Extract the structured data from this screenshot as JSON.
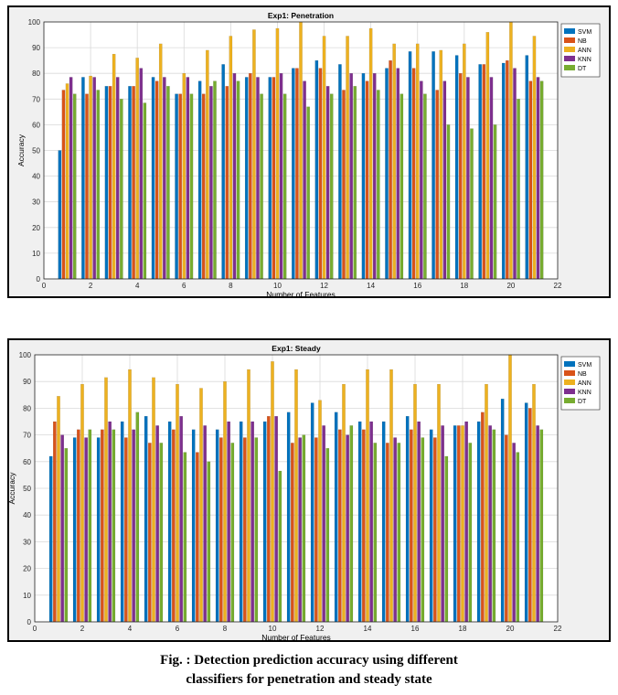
{
  "caption": {
    "line1": "Fig.    : Detection prediction accuracy using different",
    "line2": "classifiers for penetration and steady state"
  },
  "colors": {
    "SVM": "#0072bd",
    "NB": "#d95319",
    "ANN": "#edb120",
    "KNN": "#7e2f8e",
    "DT": "#77ac30"
  },
  "chart_data": [
    {
      "type": "bar",
      "title": "Exp1: Penetration",
      "xlabel": "Number of Features",
      "ylabel": "Accuracy",
      "xlim": [
        0,
        22
      ],
      "ylim": [
        0,
        100
      ],
      "xticks": [
        0,
        2,
        4,
        6,
        8,
        10,
        12,
        14,
        16,
        18,
        20,
        22
      ],
      "yticks": [
        0,
        10,
        20,
        30,
        40,
        50,
        60,
        70,
        80,
        90,
        100
      ],
      "grid": true,
      "legend_position": "top-right",
      "categories": [
        1,
        2,
        3,
        4,
        5,
        6,
        7,
        8,
        9,
        10,
        11,
        12,
        13,
        14,
        15,
        16,
        17,
        18,
        19,
        20,
        21
      ],
      "series": [
        {
          "name": "SVM",
          "values": [
            50,
            78.5,
            75,
            75,
            78.5,
            72,
            77,
            83.5,
            78.5,
            78.5,
            82,
            85,
            83.5,
            80,
            82,
            88.5,
            88.5,
            87,
            83.5,
            84,
            87
          ]
        },
        {
          "name": "NB",
          "values": [
            73.5,
            72,
            75,
            75,
            77,
            72,
            72,
            75,
            80,
            78.5,
            82,
            82,
            73.5,
            77,
            85,
            82,
            73.5,
            80,
            83.5,
            85,
            77
          ]
        },
        {
          "name": "ANN",
          "values": [
            76,
            79,
            87.5,
            86,
            91.5,
            80,
            89,
            94.5,
            97,
            97.5,
            100,
            94.5,
            94.5,
            97.5,
            91.5,
            91.5,
            89,
            91.5,
            96,
            100,
            94.5
          ]
        },
        {
          "name": "KNN",
          "values": [
            78.5,
            78.5,
            78.5,
            82,
            78.5,
            78.5,
            75,
            80,
            78.5,
            80,
            77,
            75,
            80,
            80,
            82,
            77,
            77,
            78.5,
            78.5,
            82,
            78.5
          ]
        },
        {
          "name": "DT",
          "values": [
            72,
            73.5,
            70,
            68.5,
            75,
            72,
            77,
            77,
            72,
            72,
            67,
            72,
            75,
            73.5,
            72,
            72,
            60,
            58.5,
            60,
            70,
            77
          ]
        }
      ]
    },
    {
      "type": "bar",
      "title": "Exp1: Steady",
      "xlabel": "Number of Features",
      "ylabel": "Accuracy",
      "xlim": [
        0,
        22
      ],
      "ylim": [
        0,
        100
      ],
      "xticks": [
        0,
        2,
        4,
        6,
        8,
        10,
        12,
        14,
        16,
        18,
        20,
        22
      ],
      "yticks": [
        0,
        10,
        20,
        30,
        40,
        50,
        60,
        70,
        80,
        90,
        100
      ],
      "grid": true,
      "legend_position": "top-right",
      "categories": [
        1,
        2,
        3,
        4,
        5,
        6,
        7,
        8,
        9,
        10,
        11,
        12,
        13,
        14,
        15,
        16,
        17,
        18,
        19,
        20,
        21
      ],
      "series": [
        {
          "name": "SVM",
          "values": [
            62,
            69,
            69,
            75,
            77,
            75,
            72,
            72,
            75,
            75,
            78.5,
            82,
            78.5,
            75,
            75,
            77,
            72,
            73.5,
            75,
            83.5,
            82
          ]
        },
        {
          "name": "NB",
          "values": [
            75,
            72,
            72,
            69,
            67,
            72,
            63.5,
            69,
            69,
            77,
            67,
            69,
            72,
            72,
            67,
            72,
            69,
            73.5,
            78.5,
            70,
            80
          ]
        },
        {
          "name": "ANN",
          "values": [
            84.5,
            89,
            91.5,
            94.5,
            91.5,
            89,
            87.5,
            90,
            94.5,
            97.5,
            94.5,
            83,
            89,
            94.5,
            94.5,
            89,
            89,
            73.5,
            89,
            100,
            89
          ]
        },
        {
          "name": "KNN",
          "values": [
            70,
            69,
            75,
            72,
            73.5,
            77,
            73.5,
            75,
            75,
            77,
            69,
            73.5,
            70,
            75,
            69,
            75,
            73.5,
            75,
            73.5,
            67,
            73.5
          ]
        },
        {
          "name": "DT",
          "values": [
            65,
            72,
            72,
            78.5,
            67,
            63.5,
            60,
            67,
            69,
            56.5,
            70,
            65,
            73.5,
            67,
            67,
            69,
            62,
            67,
            72,
            63.5,
            72
          ]
        }
      ]
    }
  ]
}
